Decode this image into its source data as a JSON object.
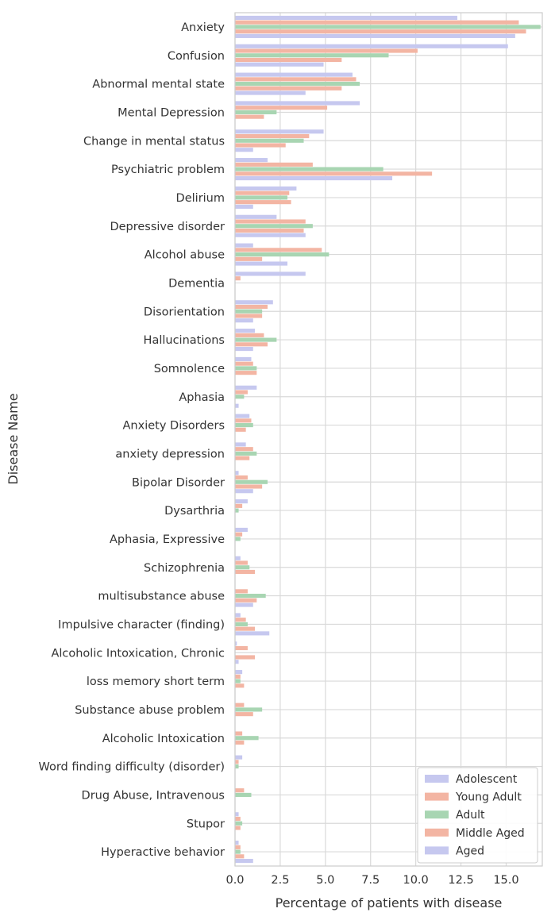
{
  "chart_data": {
    "type": "bar",
    "orientation": "horizontal",
    "xlabel": "Percentage of patients with disease",
    "ylabel": "Disease Name",
    "xlim": [
      0,
      17
    ],
    "xticks": [
      "0.0",
      "2.5",
      "5.0",
      "7.5",
      "10.0",
      "12.5",
      "15.0"
    ],
    "grid": true,
    "legend_position": "bottom-right",
    "categories": [
      "Anxiety",
      "Confusion",
      "Abnormal mental state",
      "Mental Depression",
      "Change in mental status",
      "Psychiatric problem",
      "Delirium",
      "Depressive disorder",
      "Alcohol abuse",
      "Dementia",
      "Disorientation",
      "Hallucinations",
      "Somnolence",
      "Aphasia",
      "Anxiety Disorders",
      "anxiety depression",
      "Bipolar Disorder",
      "Dysarthria",
      "Aphasia, Expressive",
      "Schizophrenia",
      "multisubstance abuse",
      "Impulsive character (finding)",
      "Alcoholic Intoxication, Chronic",
      "loss memory short term",
      "Substance abuse problem",
      "Alcoholic Intoxication",
      "Word finding difficulty (disorder)",
      "Drug Abuse, Intravenous",
      "Stupor",
      "Hyperactive behavior"
    ],
    "series": [
      {
        "name": "Adolescent",
        "color": "#c6c8ef",
        "values": [
          12.3,
          15.1,
          6.5,
          6.9,
          4.9,
          1.8,
          3.4,
          2.3,
          1.0,
          3.9,
          2.1,
          1.1,
          0.9,
          1.2,
          0.8,
          0.6,
          0.2,
          0.7,
          0.7,
          0.3,
          0.0,
          0.3,
          0.1,
          0.4,
          0.0,
          0.0,
          0.4,
          0.0,
          0.2,
          0.2
        ]
      },
      {
        "name": "Young Adult",
        "color": "#f3b5a3",
        "values": [
          15.7,
          10.1,
          6.7,
          5.1,
          4.1,
          4.3,
          3.0,
          3.9,
          4.8,
          0.3,
          1.8,
          1.6,
          1.0,
          0.7,
          0.9,
          1.0,
          0.7,
          0.4,
          0.4,
          0.7,
          0.7,
          0.6,
          0.7,
          0.3,
          0.5,
          0.4,
          0.2,
          0.5,
          0.3,
          0.3
        ]
      },
      {
        "name": "Adult",
        "color": "#a8d5b2",
        "values": [
          16.9,
          8.5,
          6.9,
          2.3,
          3.8,
          8.2,
          2.9,
          4.3,
          5.2,
          0.0,
          1.5,
          2.3,
          1.2,
          0.5,
          1.0,
          1.2,
          1.8,
          0.2,
          0.3,
          0.8,
          1.7,
          0.7,
          0.0,
          0.3,
          1.5,
          1.3,
          0.2,
          0.9,
          0.4,
          0.3
        ]
      },
      {
        "name": "Middle Aged",
        "color": "#f3b5a3",
        "values": [
          16.1,
          5.9,
          5.9,
          1.6,
          2.8,
          10.9,
          3.1,
          3.8,
          1.5,
          0.0,
          1.5,
          1.8,
          1.2,
          0.0,
          0.6,
          0.8,
          1.5,
          0.0,
          0.0,
          1.1,
          1.2,
          1.1,
          1.1,
          0.5,
          1.0,
          0.5,
          0.0,
          0.0,
          0.3,
          0.5
        ]
      },
      {
        "name": "Aged",
        "color": "#c6c8ef",
        "values": [
          15.5,
          4.9,
          3.9,
          0.0,
          1.0,
          8.7,
          1.0,
          3.9,
          2.9,
          0.0,
          1.0,
          1.0,
          0.0,
          0.2,
          0.0,
          0.0,
          1.0,
          0.0,
          0.0,
          0.0,
          1.0,
          1.9,
          0.2,
          0.0,
          0.0,
          0.0,
          0.0,
          0.0,
          0.0,
          1.0
        ]
      }
    ]
  }
}
